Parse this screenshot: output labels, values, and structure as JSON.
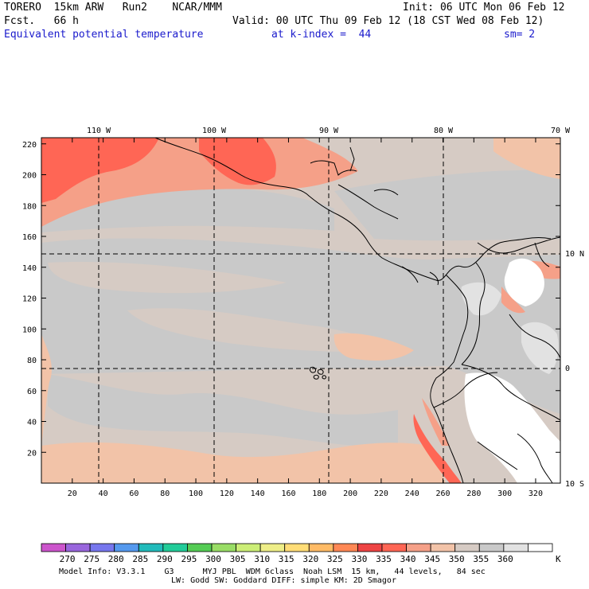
{
  "header": {
    "model": "TORERO  15km ARW   Run2    NCAR/MMM",
    "init": "Init: 06 UTC Mon 06 Feb 12",
    "fcst": "Fcst.   66 h",
    "valid": "Valid: 00 UTC Thu 09 Feb 12 (18 CST Wed 08 Feb 12)",
    "field": "Equivalent potential temperature",
    "level": "at k-index =  44",
    "smooth": "sm= 2"
  },
  "map": {
    "lon_labels": [
      "110 W",
      "100 W",
      "90 W",
      "80 W",
      "70 W"
    ],
    "lat_labels": [
      "10 N",
      "0",
      "10 S"
    ],
    "x_ticks": [
      "20",
      "40",
      "60",
      "80",
      "100",
      "120",
      "140",
      "160",
      "180",
      "200",
      "220",
      "240",
      "260",
      "280",
      "300",
      "320"
    ],
    "y_ticks": [
      "220",
      "200",
      "180",
      "160",
      "140",
      "120",
      "100",
      "80",
      "60",
      "40",
      "20"
    ]
  },
  "colorbar": {
    "labels": [
      "270",
      "275",
      "280",
      "285",
      "290",
      "295",
      "300",
      "305",
      "310",
      "315",
      "320",
      "325",
      "330",
      "335",
      "340",
      "345",
      "350",
      "355",
      "360"
    ],
    "unit": "K",
    "colors": [
      "#cc55cc",
      "#9966dd",
      "#7777ee",
      "#5599ee",
      "#22bbbb",
      "#22cc99",
      "#55cc55",
      "#99dd66",
      "#ccee77",
      "#eeee88",
      "#ffdd77",
      "#ffbb66",
      "#ff8855",
      "#ee4444",
      "#ff6655",
      "#f5a088",
      "#f2c3a8",
      "#d6cbc4",
      "#c9c9c9",
      "#e2e2e2",
      "#ffffff"
    ]
  },
  "footer": {
    "line1": "Model Info: V3.3.1    G3      MYJ PBL  WDM 6class  Noah LSM  15 km,   44 levels,   84 sec",
    "line2": "LW: Godd SW: Goddard DIFF: simple KM: 2D Smagor"
  }
}
